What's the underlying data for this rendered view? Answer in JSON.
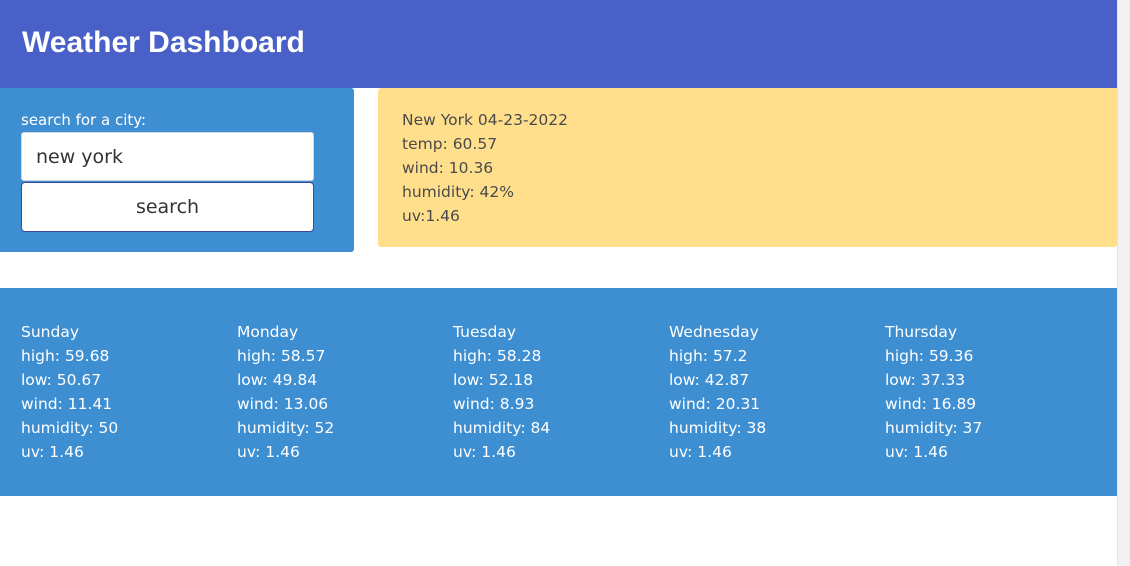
{
  "header": {
    "title": "Weather Dashboard"
  },
  "search": {
    "label": "search for a city:",
    "value": "new york",
    "button_label": "search"
  },
  "current": {
    "city_date": "New York 04-23-2022",
    "temp": "temp: 60.57",
    "wind": "wind: 10.36",
    "humidity": "humidity: 42%",
    "uv": "uv:1.46"
  },
  "forecast": [
    {
      "day": "Sunday",
      "high": "high: 59.68",
      "low": "low: 50.67",
      "wind": "wind: 11.41",
      "humidity": "humidity: 50",
      "uv": "uv: 1.46"
    },
    {
      "day": "Monday",
      "high": "high: 58.57",
      "low": "low: 49.84",
      "wind": "wind: 13.06",
      "humidity": "humidity: 52",
      "uv": "uv: 1.46"
    },
    {
      "day": "Tuesday",
      "high": "high: 58.28",
      "low": "low: 52.18",
      "wind": "wind: 8.93",
      "humidity": "humidity: 84",
      "uv": "uv: 1.46"
    },
    {
      "day": "Wednesday",
      "high": "high: 57.2",
      "low": "low: 42.87",
      "wind": "wind: 20.31",
      "humidity": "humidity: 38",
      "uv": "uv: 1.46"
    },
    {
      "day": "Thursday",
      "high": "high: 59.36",
      "low": "low: 37.33",
      "wind": "wind: 16.89",
      "humidity": "humidity: 37",
      "uv": "uv: 1.46"
    }
  ],
  "colors": {
    "header_bg": "#4a60c9",
    "panel_blue": "#3e8ed2",
    "current_bg": "#ffdf8c"
  }
}
